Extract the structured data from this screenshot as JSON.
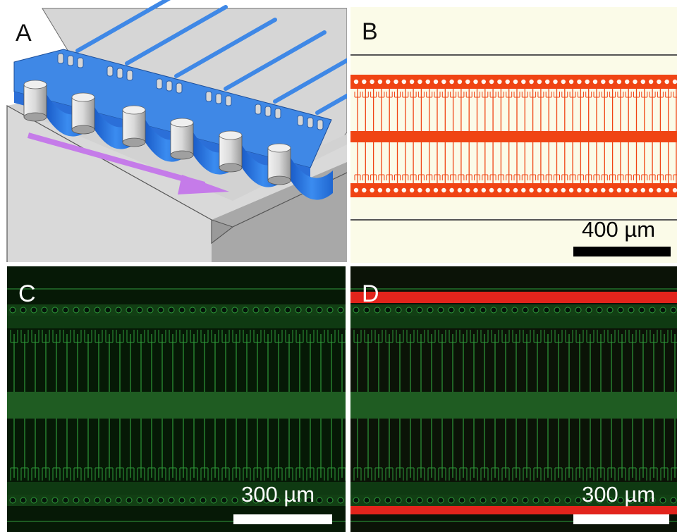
{
  "panels": {
    "a": {
      "label": "A"
    },
    "b": {
      "label": "B",
      "scale_bar": "400 µm"
    },
    "c": {
      "label": "C",
      "scale_bar": "300 µm"
    },
    "d": {
      "label": "D",
      "scale_bar": "300 µm"
    }
  },
  "colors": {
    "channel_blue": "#3f88e6",
    "flow_arrow": "#c57be9",
    "substrate_gray": "#d4d4d4",
    "brightfield_bg": "#fbfbe8",
    "red_channel": "#f04414",
    "fluor_green": "#2e9a3a",
    "fluor_red": "#e2241c"
  },
  "icons": {
    "flow_direction": "arrow-right-down"
  }
}
